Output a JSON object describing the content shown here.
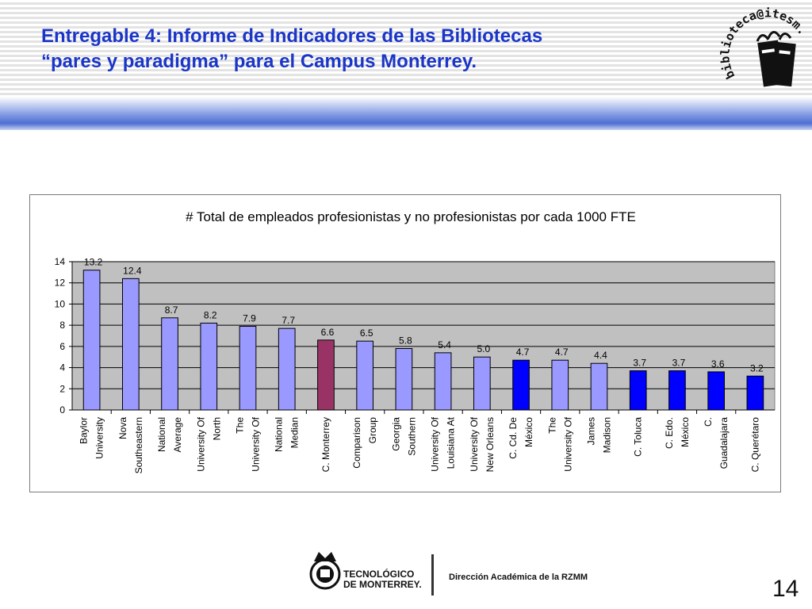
{
  "slide": {
    "title_line1": "Entregable 4: Informe de Indicadores de las Bibliotecas",
    "title_line2": "“pares y paradigma” para el Campus Monterrey.",
    "logo_text": "biblioteca@itesm.mx",
    "footer_logo_line1": "TECNOLÓGICO",
    "footer_logo_line2": "DE MONTERREY.",
    "footer_text": "Dirección Académica de la RZMM",
    "page_number": "14"
  },
  "colors": {
    "title": "#1a35c8",
    "bar_peer": "#9999ff",
    "bar_highlight": "#993366",
    "bar_campus": "#0000ff",
    "plot_bg": "#c0c0c0"
  },
  "chart_data": {
    "type": "bar",
    "title": "# Total de empleados profesionistas y no profesionistas por cada 1000 FTE",
    "xlabel": "",
    "ylabel": "",
    "ylim": [
      0,
      14
    ],
    "yticks": [
      0,
      2,
      4,
      6,
      8,
      10,
      12,
      14
    ],
    "grid": true,
    "legend": "none",
    "categories": [
      [
        "Baylor",
        "University"
      ],
      [
        "Nova",
        "Southeastern"
      ],
      [
        "National",
        "Average"
      ],
      [
        "University Of",
        "North"
      ],
      [
        "The",
        "University Of"
      ],
      [
        "National",
        "Median"
      ],
      [
        "C. Monterrey"
      ],
      [
        "Comparison",
        "Group"
      ],
      [
        "Georgia",
        "Southern"
      ],
      [
        "University Of",
        "Louisiana At"
      ],
      [
        "University Of",
        "New Orleans"
      ],
      [
        "C. Cd. De",
        "México"
      ],
      [
        "The",
        "University Of"
      ],
      [
        "James",
        "Madison"
      ],
      [
        "C. Toluca"
      ],
      [
        "C. Edo.",
        "México"
      ],
      [
        "C.",
        "Guadalajara"
      ],
      [
        "C. Querétaro"
      ]
    ],
    "values": [
      13.2,
      12.4,
      8.7,
      8.2,
      7.9,
      7.7,
      6.6,
      6.5,
      5.8,
      5.4,
      5.0,
      4.7,
      4.7,
      4.4,
      3.7,
      3.7,
      3.6,
      3.2
    ],
    "value_labels": [
      "13.2",
      "12.4",
      "8.7",
      "8.2",
      "7.9",
      "7.7",
      "6.6",
      "6.5",
      "5.8",
      "5.4",
      "5.0",
      "4.7",
      "4.7",
      "4.4",
      "3.7",
      "3.7",
      "3.6",
      "3.2"
    ],
    "bar_groups": [
      "peer",
      "peer",
      "peer",
      "peer",
      "peer",
      "peer",
      "highlight",
      "peer",
      "peer",
      "peer",
      "peer",
      "campus",
      "peer",
      "peer",
      "campus",
      "campus",
      "campus",
      "campus"
    ]
  }
}
